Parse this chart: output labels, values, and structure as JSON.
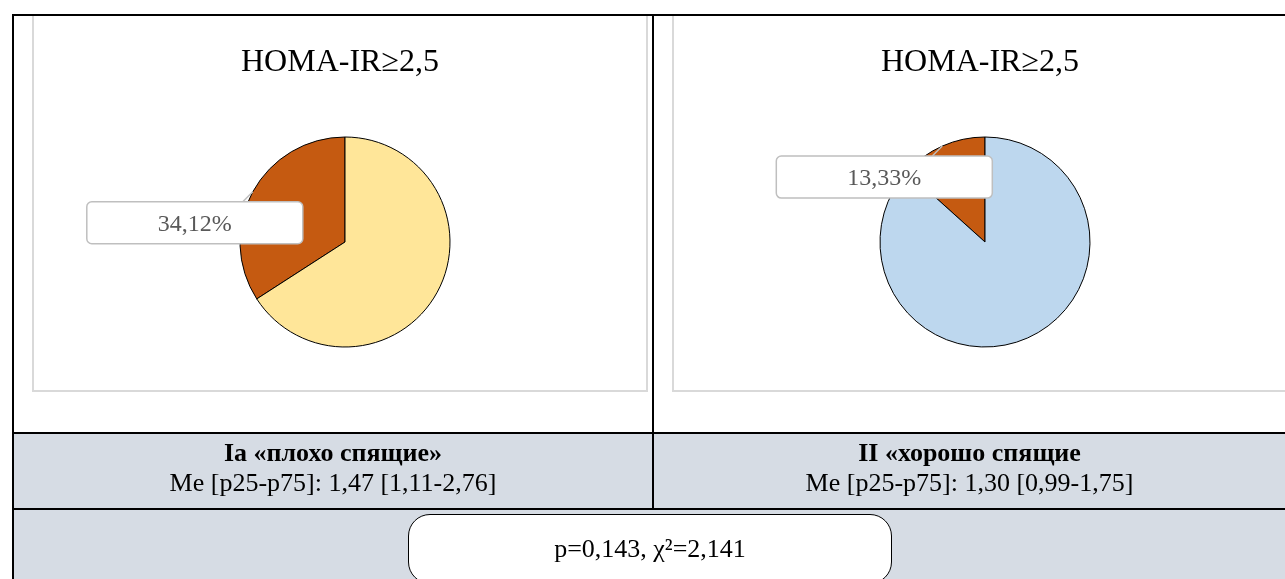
{
  "chart_data": [
    {
      "type": "pie",
      "title": "HOMA-IR≥2,5",
      "categories": [
        null,
        null
      ],
      "values": [
        34.12,
        65.88
      ],
      "colors": [
        "#c55a11",
        "#ffe699"
      ],
      "value_labels": [
        "34,12%",
        null
      ],
      "legend": false,
      "annotations": [
        "Ia «плохо спящие»",
        "Me [p25-p75]: 1,47 [1,11-2,76]"
      ]
    },
    {
      "type": "pie",
      "title": "HOMA-IR≥2,5",
      "categories": [
        null,
        null
      ],
      "values": [
        13.33,
        86.67
      ],
      "colors": [
        "#c55a11",
        "#bdd7ee"
      ],
      "value_labels": [
        "13,33%",
        null
      ],
      "legend": false,
      "annotations": [
        "II «хорошо спящие",
        "Me [p25-p75]: 1,30 [0,99-1,75]",
        "p=0,143, χ²=2,141"
      ]
    }
  ]
}
